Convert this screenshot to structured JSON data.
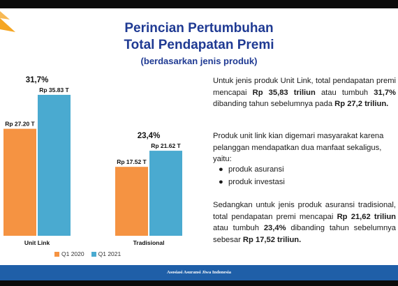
{
  "header": {
    "title_line1": "Perincian Pertumbuhan",
    "title_line2": "Total Pendapatan Premi",
    "subtitle": "(berdasarkan jenis produk)"
  },
  "chart_data": {
    "type": "bar",
    "categories": [
      "Unit Link",
      "Tradisional"
    ],
    "series": [
      {
        "name": "Q1 2020",
        "values": [
          27.2,
          17.52
        ],
        "labels": [
          "Rp 27.20 T",
          "Rp 17.52 T"
        ],
        "color": "#f59342"
      },
      {
        "name": "Q1 2021",
        "values": [
          35.83,
          21.62
        ],
        "labels": [
          "Rp 35.83 T",
          "Rp 21.62 T"
        ],
        "color": "#4aaad0"
      }
    ],
    "growth_labels": [
      "31,7%",
      "23,4%"
    ],
    "ylim": [
      0,
      36
    ],
    "legend_position": "bottom"
  },
  "body": {
    "p1_a": "Untuk jenis produk Unit Link, total pendapatan premi mencapai ",
    "p1_b": "Rp 35,83 triliun",
    "p1_c": " atau tumbuh ",
    "p1_d": "31,7%",
    "p1_e": " dibanding tahun sebelumnya pada ",
    "p1_f": "Rp 27,2 triliun.",
    "p2": "Produk unit link kian digemari masyarakat karena pelanggan mendapatkan dua manfaat sekaligus, yaitu:",
    "bullets": [
      "produk asuransi",
      "produk investasi"
    ],
    "p3_a": "Sedangkan untuk jenis produk asuransi tradisional, total pendapatan premi mencapai ",
    "p3_b": "Rp 21,62 triliun",
    "p3_c": " atau tumbuh ",
    "p3_d": "23,4%",
    "p3_e": " dibanding tahun sebelumnya sebesar ",
    "p3_f": "Rp 17,52 triliun."
  },
  "footer": {
    "text": "Asosiasi Asuransi Jiwa Indonesia"
  },
  "colors": {
    "title": "#1f3a93",
    "footer": "#1f5fa8",
    "logo": "#f5a623"
  }
}
